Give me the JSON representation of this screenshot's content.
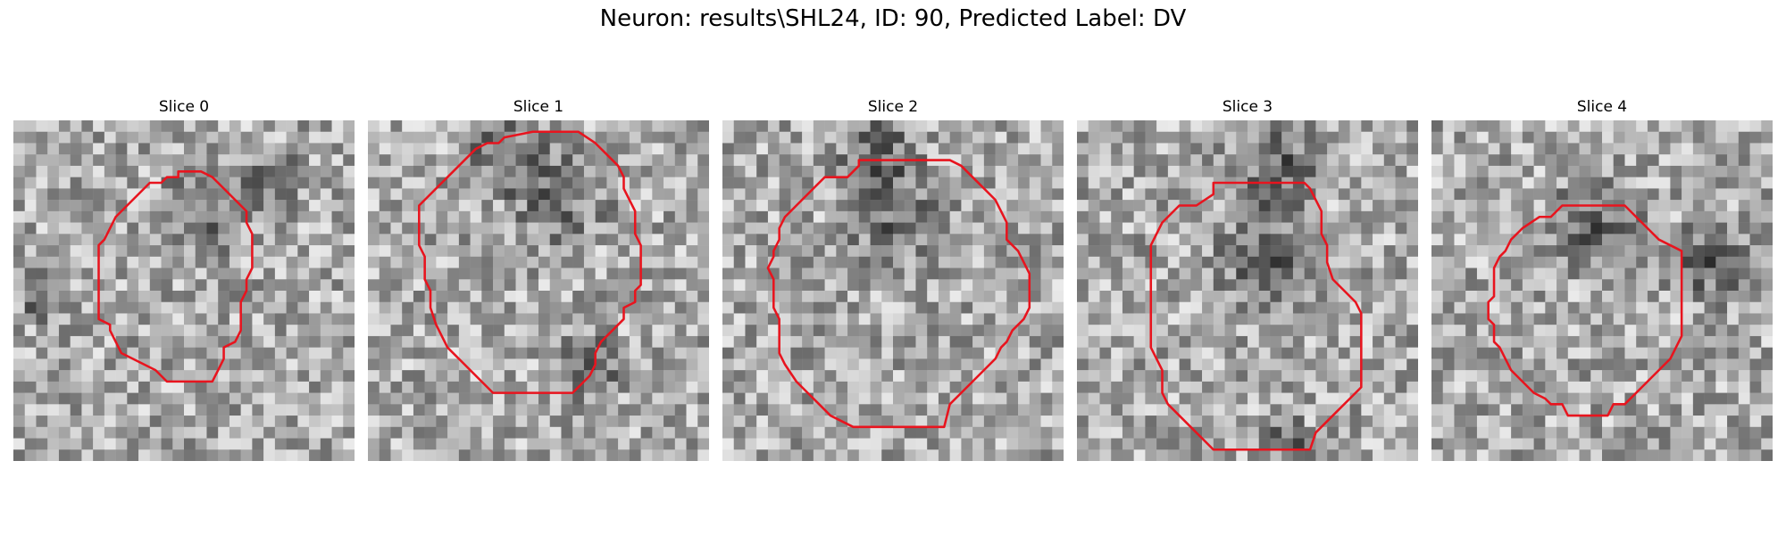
{
  "figure": {
    "title": "Neuron: results\\SHL24, ID: 90, Predicted Label: DV",
    "contour_color": "#e8141e",
    "colormap": "gray",
    "grid_size": 30
  },
  "panels": [
    {
      "title": "Slice 0",
      "contour": [
        [
          13.5,
          5.0
        ],
        [
          14.5,
          5.0
        ],
        [
          14.5,
          4.5
        ],
        [
          16.5,
          4.5
        ],
        [
          17.5,
          5.0
        ],
        [
          18.5,
          6.0
        ],
        [
          19.5,
          7.0
        ],
        [
          20.5,
          8.0
        ],
        [
          20.5,
          9.0
        ],
        [
          21.0,
          10.0
        ],
        [
          21.0,
          11.5
        ],
        [
          21.0,
          13.0
        ],
        [
          20.5,
          14.0
        ],
        [
          20.5,
          15.0
        ],
        [
          20.0,
          16.0
        ],
        [
          20.0,
          18.5
        ],
        [
          19.5,
          19.5
        ],
        [
          18.5,
          20.0
        ],
        [
          18.5,
          21.0
        ],
        [
          18.0,
          22.0
        ],
        [
          17.5,
          23.0
        ],
        [
          13.5,
          23.0
        ],
        [
          12.5,
          22.0
        ],
        [
          11.5,
          21.5
        ],
        [
          10.5,
          21.0
        ],
        [
          9.5,
          20.5
        ],
        [
          9.0,
          19.5
        ],
        [
          8.5,
          18.5
        ],
        [
          8.5,
          18.0
        ],
        [
          7.5,
          17.5
        ],
        [
          7.5,
          16.0
        ],
        [
          7.5,
          14.0
        ],
        [
          7.5,
          12.0
        ],
        [
          7.5,
          11.0
        ],
        [
          8.0,
          10.5
        ],
        [
          8.5,
          9.5
        ],
        [
          9.0,
          8.5
        ],
        [
          10.0,
          7.5
        ],
        [
          11.0,
          6.5
        ],
        [
          12.0,
          5.5
        ],
        [
          13.0,
          5.5
        ]
      ]
    },
    {
      "title": "Slice 1",
      "contour": [
        [
          12.0,
          1.5
        ],
        [
          14.5,
          1.0
        ],
        [
          18.5,
          1.0
        ],
        [
          20.0,
          2.0
        ],
        [
          21.0,
          3.0
        ],
        [
          22.0,
          4.0
        ],
        [
          22.5,
          5.0
        ],
        [
          22.5,
          6.0
        ],
        [
          23.0,
          7.0
        ],
        [
          23.5,
          8.0
        ],
        [
          23.5,
          10.0
        ],
        [
          24.0,
          11.0
        ],
        [
          24.0,
          13.0
        ],
        [
          24.0,
          14.5
        ],
        [
          23.5,
          15.0
        ],
        [
          23.5,
          16.0
        ],
        [
          22.5,
          16.5
        ],
        [
          22.5,
          17.5
        ],
        [
          21.5,
          18.5
        ],
        [
          21.0,
          19.0
        ],
        [
          20.5,
          19.5
        ],
        [
          20.0,
          20.5
        ],
        [
          20.0,
          21.5
        ],
        [
          19.5,
          22.5
        ],
        [
          19.0,
          23.0
        ],
        [
          18.0,
          24.0
        ],
        [
          11.0,
          24.0
        ],
        [
          10.0,
          23.0
        ],
        [
          9.0,
          22.0
        ],
        [
          8.0,
          21.0
        ],
        [
          7.0,
          20.0
        ],
        [
          6.5,
          19.0
        ],
        [
          6.0,
          18.0
        ],
        [
          5.5,
          16.5
        ],
        [
          5.5,
          15.0
        ],
        [
          5.0,
          14.0
        ],
        [
          5.0,
          12.0
        ],
        [
          4.5,
          11.0
        ],
        [
          4.5,
          7.5
        ],
        [
          5.5,
          6.5
        ],
        [
          6.5,
          5.5
        ],
        [
          7.5,
          4.5
        ],
        [
          8.5,
          3.5
        ],
        [
          9.5,
          2.5
        ],
        [
          10.5,
          2.0
        ],
        [
          11.5,
          2.0
        ]
      ]
    },
    {
      "title": "Slice 2",
      "contour": [
        [
          9.0,
          5.0
        ],
        [
          11.0,
          5.0
        ],
        [
          12.0,
          4.0
        ],
        [
          12.0,
          3.5
        ],
        [
          13.5,
          3.5
        ],
        [
          20.0,
          3.5
        ],
        [
          21.0,
          4.0
        ],
        [
          22.0,
          5.0
        ],
        [
          23.0,
          6.0
        ],
        [
          24.0,
          7.0
        ],
        [
          24.5,
          8.0
        ],
        [
          25.0,
          9.0
        ],
        [
          25.0,
          10.5
        ],
        [
          26.0,
          11.5
        ],
        [
          26.5,
          12.5
        ],
        [
          27.0,
          13.5
        ],
        [
          27.0,
          16.5
        ],
        [
          26.5,
          17.5
        ],
        [
          25.5,
          18.5
        ],
        [
          25.0,
          19.5
        ],
        [
          24.5,
          20.0
        ],
        [
          24.0,
          21.0
        ],
        [
          23.0,
          22.0
        ],
        [
          22.0,
          23.0
        ],
        [
          21.0,
          24.0
        ],
        [
          20.0,
          25.0
        ],
        [
          19.5,
          27.0
        ],
        [
          11.5,
          27.0
        ],
        [
          10.5,
          26.5
        ],
        [
          9.5,
          26.0
        ],
        [
          8.5,
          25.0
        ],
        [
          7.5,
          24.0
        ],
        [
          6.5,
          23.0
        ],
        [
          5.5,
          21.5
        ],
        [
          5.0,
          20.5
        ],
        [
          5.0,
          19.5
        ],
        [
          5.0,
          17.5
        ],
        [
          4.5,
          16.5
        ],
        [
          4.5,
          14.0
        ],
        [
          4.0,
          13.0
        ],
        [
          4.5,
          12.0
        ],
        [
          4.5,
          11.5
        ],
        [
          5.0,
          10.5
        ],
        [
          5.0,
          9.5
        ],
        [
          5.5,
          8.5
        ],
        [
          6.5,
          7.5
        ],
        [
          7.5,
          6.5
        ],
        [
          8.5,
          5.5
        ]
      ]
    },
    {
      "title": "Slice 3",
      "contour": [
        [
          9.0,
          7.5
        ],
        [
          10.5,
          7.5
        ],
        [
          12.0,
          6.5
        ],
        [
          12.0,
          5.5
        ],
        [
          20.0,
          5.5
        ],
        [
          20.5,
          6.0
        ],
        [
          21.0,
          7.0
        ],
        [
          21.5,
          8.0
        ],
        [
          21.5,
          10.0
        ],
        [
          22.0,
          11.0
        ],
        [
          22.0,
          12.5
        ],
        [
          22.5,
          14.0
        ],
        [
          23.5,
          15.0
        ],
        [
          24.5,
          16.0
        ],
        [
          25.0,
          17.0
        ],
        [
          25.0,
          19.0
        ],
        [
          25.0,
          23.5
        ],
        [
          24.0,
          24.5
        ],
        [
          23.0,
          25.5
        ],
        [
          22.0,
          26.5
        ],
        [
          21.0,
          27.5
        ],
        [
          20.5,
          29.0
        ],
        [
          12.0,
          29.0
        ],
        [
          11.0,
          28.0
        ],
        [
          10.0,
          27.0
        ],
        [
          9.0,
          26.0
        ],
        [
          8.0,
          25.0
        ],
        [
          7.5,
          24.0
        ],
        [
          7.5,
          22.0
        ],
        [
          7.0,
          21.0
        ],
        [
          6.5,
          20.0
        ],
        [
          6.5,
          19.0
        ],
        [
          6.5,
          17.5
        ],
        [
          6.5,
          11.0
        ],
        [
          7.0,
          10.0
        ],
        [
          7.5,
          9.0
        ],
        [
          8.5,
          8.0
        ]
      ]
    },
    {
      "title": "Slice 4",
      "contour": [
        [
          9.5,
          8.5
        ],
        [
          10.5,
          8.5
        ],
        [
          11.5,
          7.5
        ],
        [
          12.5,
          7.5
        ],
        [
          17.0,
          7.5
        ],
        [
          18.0,
          8.5
        ],
        [
          19.0,
          9.5
        ],
        [
          20.0,
          10.5
        ],
        [
          22.0,
          11.5
        ],
        [
          22.0,
          13.0
        ],
        [
          22.0,
          14.5
        ],
        [
          22.0,
          16.5
        ],
        [
          22.0,
          19.0
        ],
        [
          21.5,
          20.0
        ],
        [
          21.0,
          21.0
        ],
        [
          20.5,
          21.5
        ],
        [
          19.5,
          22.5
        ],
        [
          18.5,
          23.5
        ],
        [
          17.0,
          25.0
        ],
        [
          16.0,
          25.0
        ],
        [
          15.5,
          26.0
        ],
        [
          12.0,
          26.0
        ],
        [
          11.5,
          25.0
        ],
        [
          10.5,
          25.0
        ],
        [
          10.0,
          24.5
        ],
        [
          9.0,
          24.0
        ],
        [
          8.0,
          23.0
        ],
        [
          7.0,
          22.0
        ],
        [
          6.5,
          21.0
        ],
        [
          6.0,
          20.0
        ],
        [
          5.5,
          19.5
        ],
        [
          5.5,
          18.0
        ],
        [
          5.0,
          17.5
        ],
        [
          5.0,
          16.0
        ],
        [
          5.5,
          15.5
        ],
        [
          5.5,
          14.5
        ],
        [
          5.5,
          13.0
        ],
        [
          6.0,
          12.0
        ],
        [
          6.5,
          11.5
        ],
        [
          7.0,
          10.5
        ],
        [
          8.0,
          9.5
        ]
      ]
    }
  ]
}
